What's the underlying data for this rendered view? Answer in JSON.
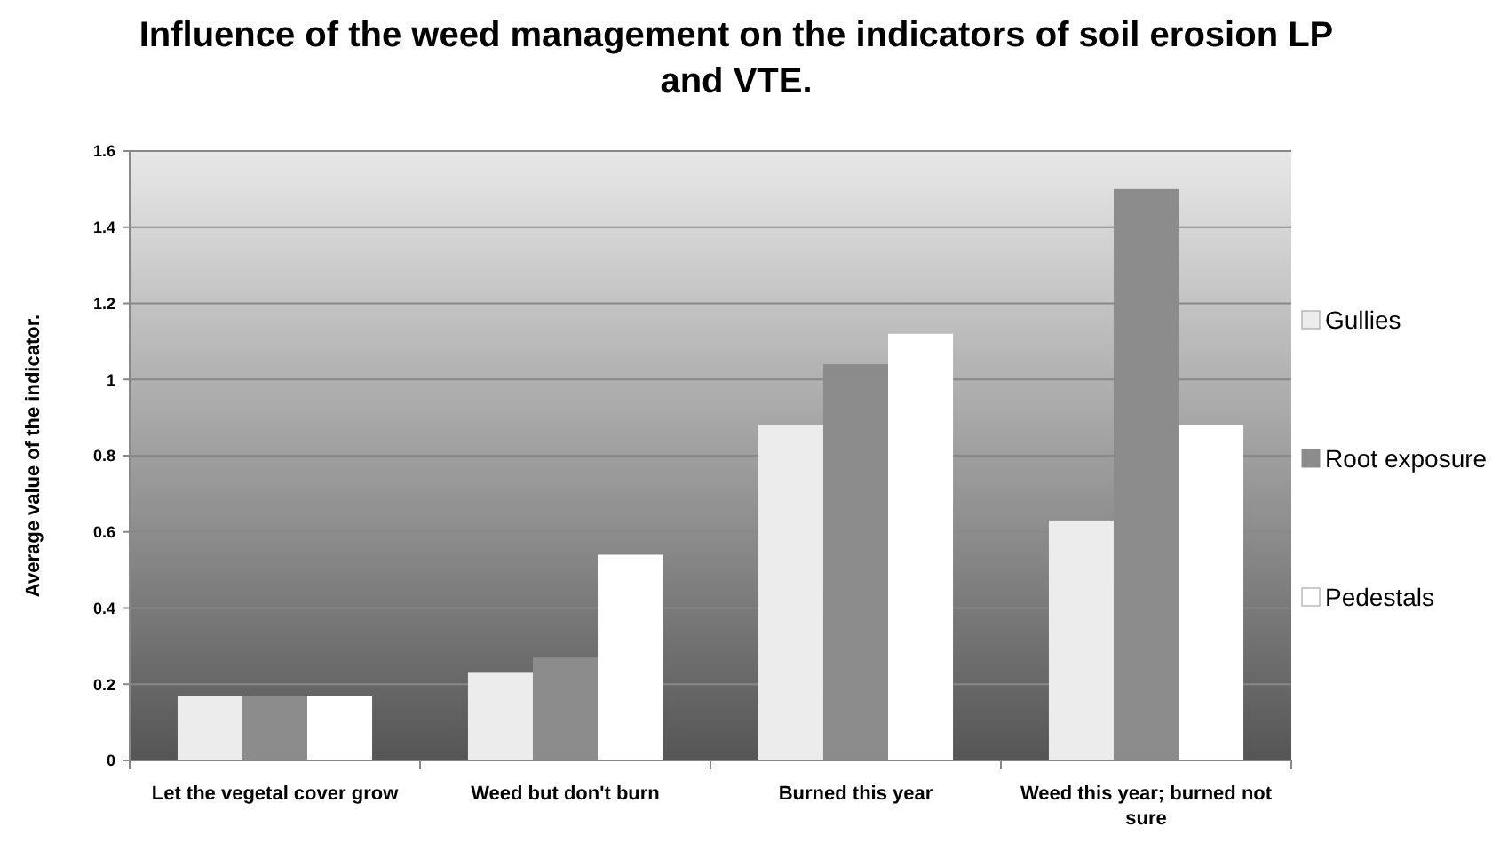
{
  "chart_data": {
    "type": "bar",
    "title": "Influence of the weed management on the indicators of soil erosion LP and VTE.",
    "ylabel": "Average value of the indicator.",
    "categories": [
      "Let the vegetal cover grow",
      "Weed but don't burn",
      "Burned this year",
      "Weed this year; burned not sure"
    ],
    "series": [
      {
        "name": "Gullies",
        "color": "#ececec",
        "values": [
          0.17,
          0.23,
          0.88,
          0.63
        ]
      },
      {
        "name": "Root exposure",
        "color": "#8c8c8c",
        "values": [
          0.17,
          0.27,
          1.04,
          1.5
        ]
      },
      {
        "name": "Pedestals",
        "color": "#ffffff",
        "values": [
          0.17,
          0.54,
          1.12,
          0.88
        ]
      }
    ],
    "ylim": [
      0,
      1.6
    ],
    "yticks": [
      0,
      0.2,
      0.4,
      0.6,
      0.8,
      1,
      1.2,
      1.4,
      1.6
    ],
    "grid": "y",
    "legend": "right"
  }
}
